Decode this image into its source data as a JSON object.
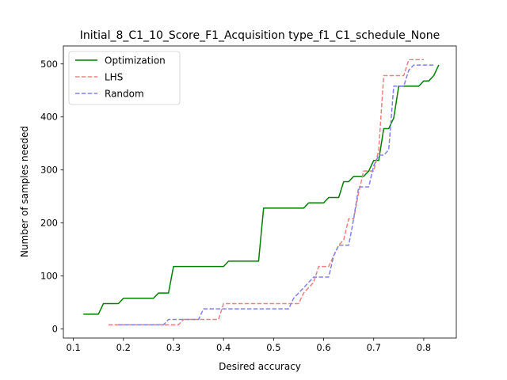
{
  "chart_data": {
    "type": "line",
    "title": "Initial_8_C1_10_Score_F1_Acquisition type_f1_C1_schedule_None",
    "xlabel": "Desired accuracy",
    "ylabel": "Number of samples needed",
    "xlim": [
      0.08,
      0.865
    ],
    "ylim": [
      -17,
      534
    ],
    "xticks": [
      0.1,
      0.2,
      0.3,
      0.4,
      0.5,
      0.6,
      0.7,
      0.8
    ],
    "xtick_labels": [
      "0.1",
      "0.2",
      "0.3",
      "0.4",
      "0.5",
      "0.6",
      "0.7",
      "0.8"
    ],
    "yticks": [
      0,
      100,
      200,
      300,
      400,
      500
    ],
    "ytick_labels": [
      "0",
      "100",
      "200",
      "300",
      "400",
      "500"
    ],
    "grid": false,
    "legend_position": "top-left",
    "series": [
      {
        "name": "Optimization",
        "color": "#008000",
        "style": "solid",
        "points": [
          [
            0.12,
            28
          ],
          [
            0.15,
            28
          ],
          [
            0.16,
            48
          ],
          [
            0.19,
            48
          ],
          [
            0.2,
            58
          ],
          [
            0.26,
            58
          ],
          [
            0.27,
            68
          ],
          [
            0.29,
            68
          ],
          [
            0.3,
            118
          ],
          [
            0.4,
            118
          ],
          [
            0.41,
            128
          ],
          [
            0.47,
            128
          ],
          [
            0.48,
            228
          ],
          [
            0.56,
            228
          ],
          [
            0.57,
            238
          ],
          [
            0.6,
            238
          ],
          [
            0.61,
            248
          ],
          [
            0.63,
            248
          ],
          [
            0.64,
            278
          ],
          [
            0.65,
            278
          ],
          [
            0.66,
            288
          ],
          [
            0.68,
            288
          ],
          [
            0.69,
            298
          ],
          [
            0.7,
            318
          ],
          [
            0.71,
            318
          ],
          [
            0.72,
            378
          ],
          [
            0.73,
            378
          ],
          [
            0.74,
            398
          ],
          [
            0.75,
            458
          ],
          [
            0.79,
            458
          ],
          [
            0.8,
            468
          ],
          [
            0.81,
            468
          ],
          [
            0.82,
            478
          ],
          [
            0.83,
            498
          ]
        ]
      },
      {
        "name": "LHS",
        "color": "#f08080",
        "style": "dashed",
        "points": [
          [
            0.17,
            8
          ],
          [
            0.31,
            8
          ],
          [
            0.32,
            18
          ],
          [
            0.39,
            18
          ],
          [
            0.4,
            48
          ],
          [
            0.55,
            48
          ],
          [
            0.56,
            68
          ],
          [
            0.57,
            78
          ],
          [
            0.58,
            88
          ],
          [
            0.59,
            118
          ],
          [
            0.61,
            118
          ],
          [
            0.62,
            138
          ],
          [
            0.63,
            158
          ],
          [
            0.64,
            168
          ],
          [
            0.65,
            208
          ],
          [
            0.66,
            208
          ],
          [
            0.67,
            258
          ],
          [
            0.68,
            298
          ],
          [
            0.7,
            298
          ],
          [
            0.71,
            338
          ],
          [
            0.72,
            478
          ],
          [
            0.76,
            478
          ],
          [
            0.77,
            508
          ],
          [
            0.8,
            508
          ]
        ]
      },
      {
        "name": "Random",
        "color": "#8080f0",
        "style": "dashed",
        "points": [
          [
            0.19,
            8
          ],
          [
            0.28,
            8
          ],
          [
            0.29,
            18
          ],
          [
            0.35,
            18
          ],
          [
            0.36,
            38
          ],
          [
            0.53,
            38
          ],
          [
            0.54,
            58
          ],
          [
            0.56,
            78
          ],
          [
            0.58,
            98
          ],
          [
            0.61,
            98
          ],
          [
            0.62,
            138
          ],
          [
            0.63,
            158
          ],
          [
            0.65,
            158
          ],
          [
            0.66,
            208
          ],
          [
            0.67,
            268
          ],
          [
            0.69,
            268
          ],
          [
            0.7,
            308
          ],
          [
            0.71,
            328
          ],
          [
            0.72,
            328
          ],
          [
            0.73,
            338
          ],
          [
            0.74,
            458
          ],
          [
            0.76,
            458
          ],
          [
            0.77,
            488
          ],
          [
            0.78,
            498
          ],
          [
            0.82,
            498
          ]
        ]
      }
    ]
  }
}
